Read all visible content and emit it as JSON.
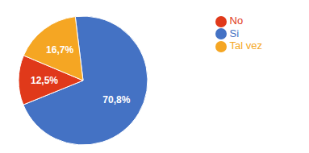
{
  "chart_data": {
    "type": "pie",
    "categories": [
      "Si",
      "No",
      "Tal vez"
    ],
    "values": [
      70.8,
      12.5,
      16.7
    ],
    "value_labels": [
      "70,8%",
      "12,5%",
      "16,7%"
    ],
    "colors": [
      "#4472C4",
      "#E0391A",
      "#F5A623"
    ],
    "data_labels": true,
    "legend": "right"
  }
}
